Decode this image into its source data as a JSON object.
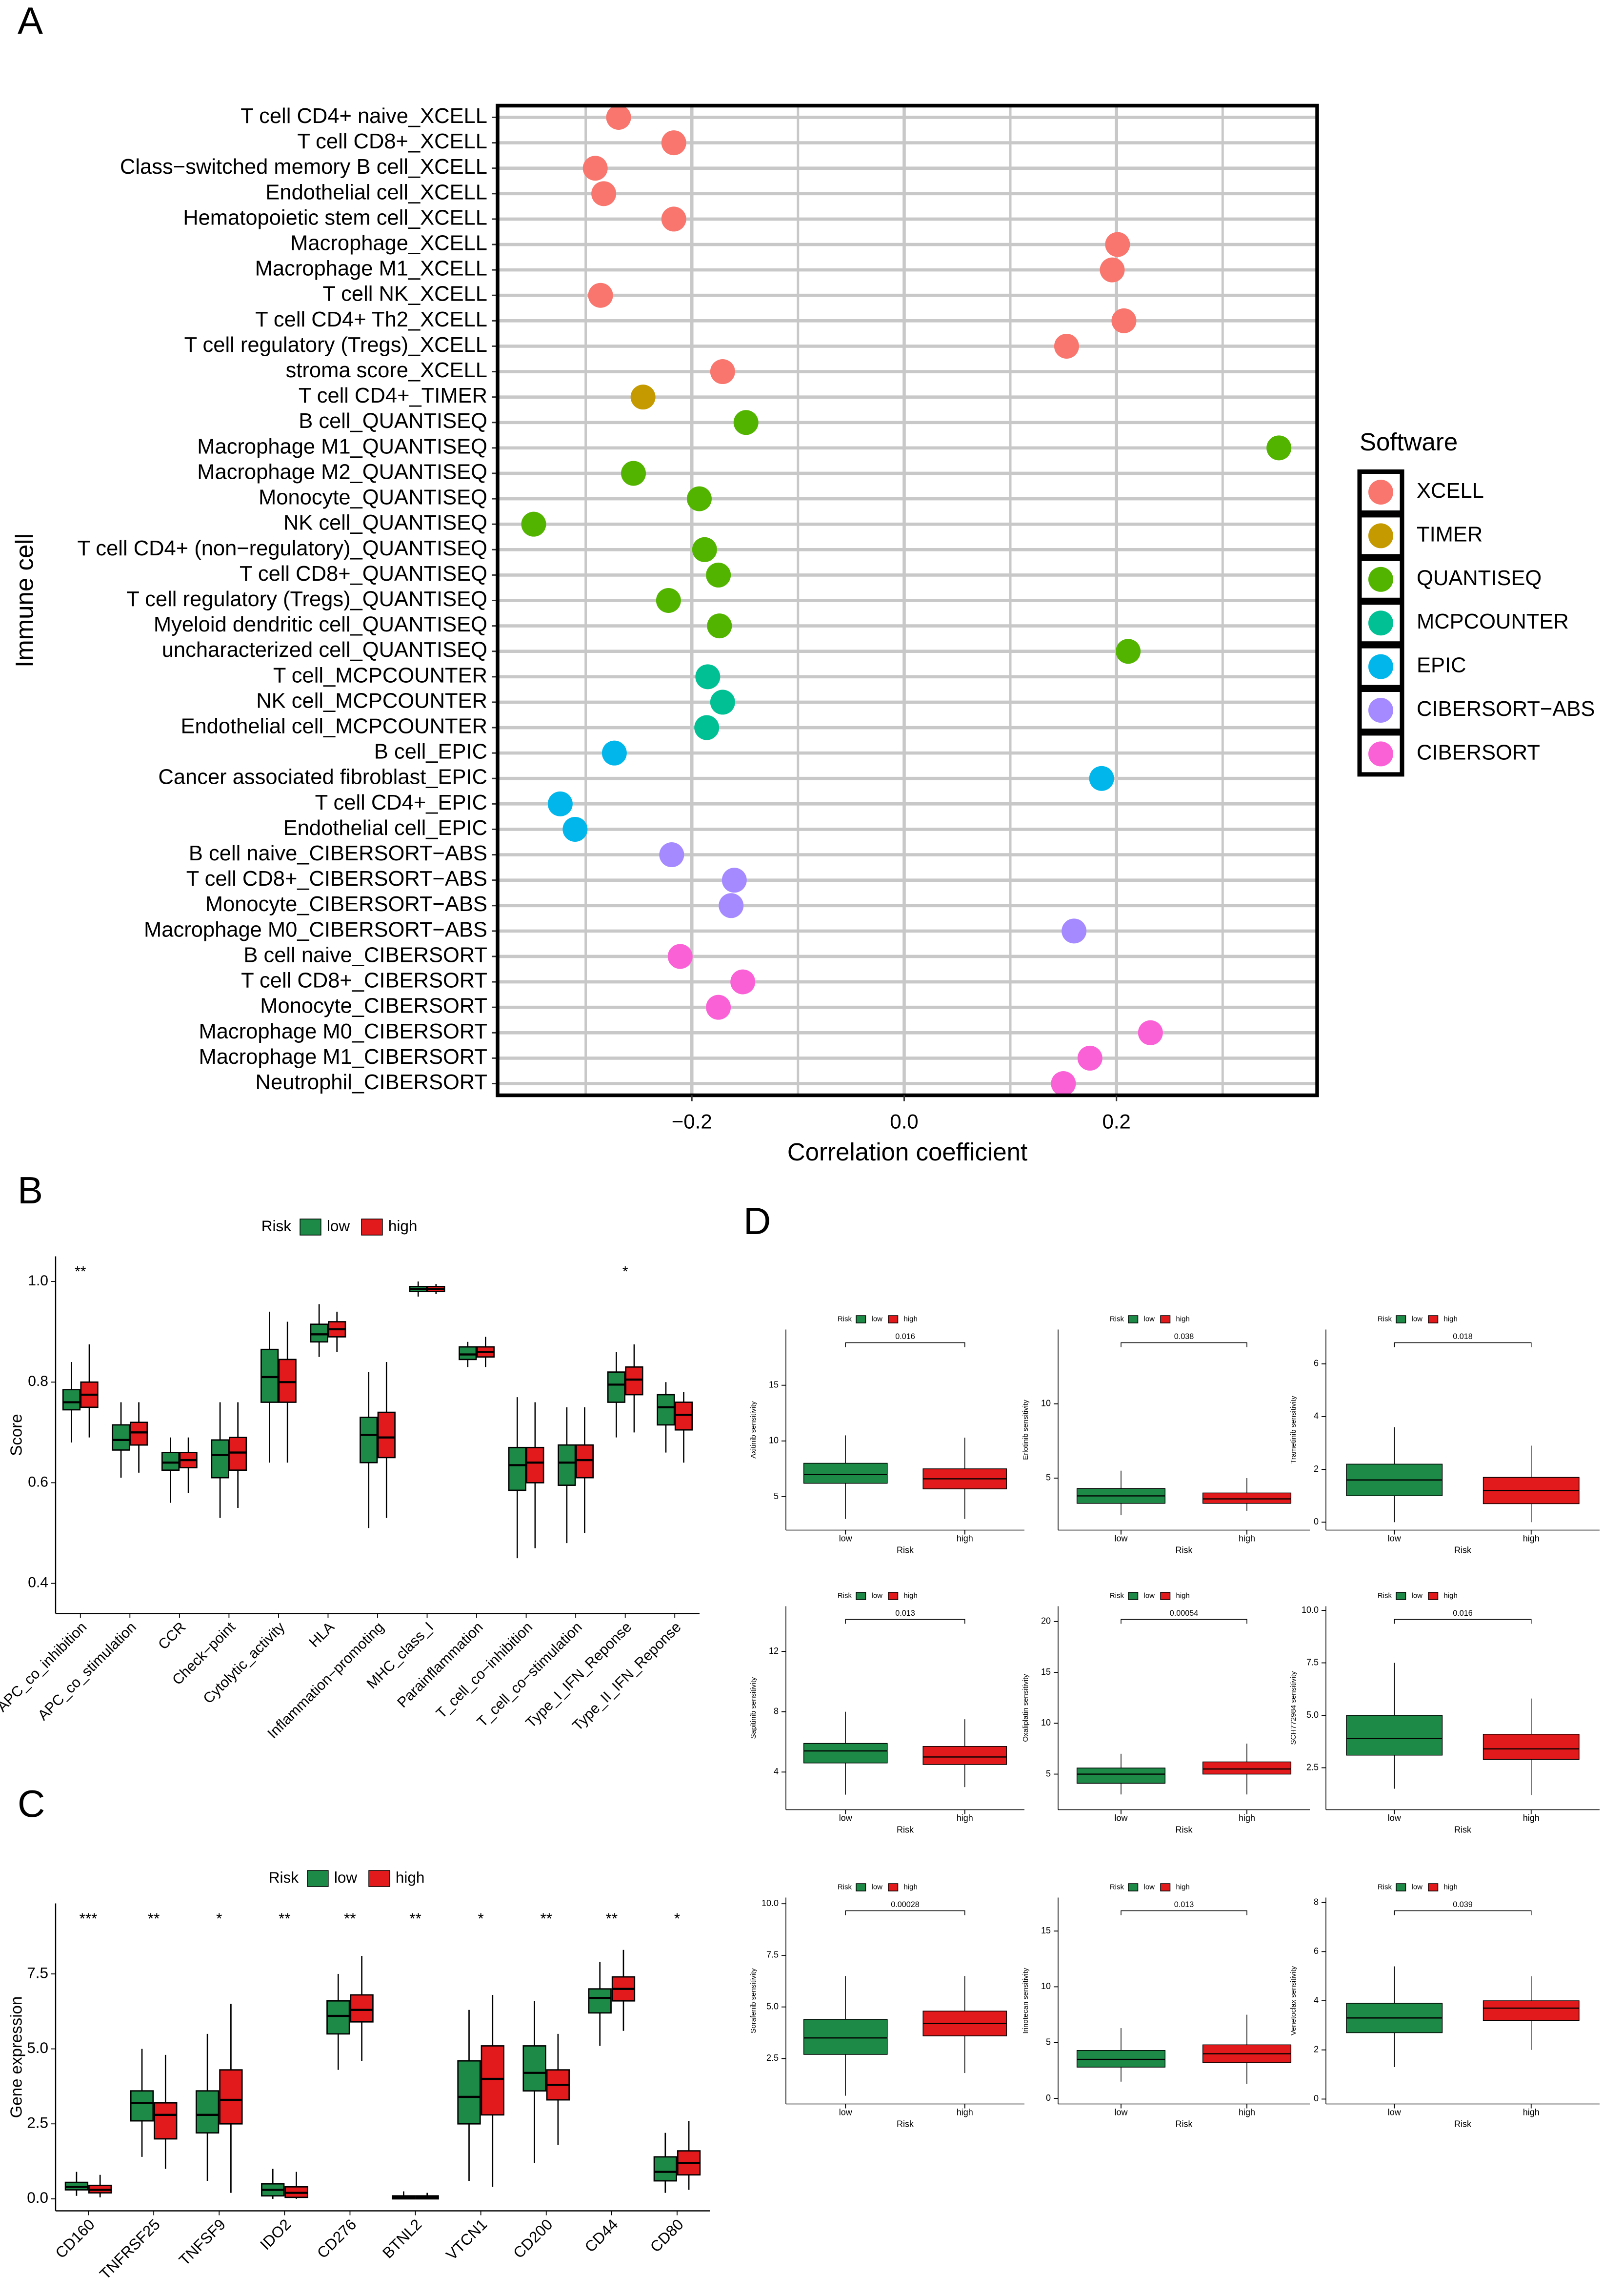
{
  "panel_labels": [
    "A",
    "B",
    "C",
    "D"
  ],
  "chart_data": [
    {
      "type": "dot",
      "xlabel": "Correlation coefficient",
      "ylabel": "Immune cell",
      "legend_title": "Software",
      "xlim": [
        -0.383,
        0.389
      ],
      "xticks": [
        {
          "value": -0.2,
          "label": "−0.2"
        },
        {
          "value": 0,
          "label": "0.0"
        },
        0.2
      ],
      "minor_xticks": [
        -0.3,
        -0.1,
        0.1,
        0.3
      ],
      "grid": true,
      "series": [
        {
          "name": "XCELL",
          "color": "#F8766D",
          "categories": [
            "T cell CD4+ naive_XCELL",
            "T cell CD8+_XCELL",
            "Class−switched memory B cell_XCELL",
            "Endothelial cell_XCELL",
            "Hematopoietic stem cell_XCELL",
            "Macrophage_XCELL",
            "Macrophage M1_XCELL",
            "T cell NK_XCELL",
            "T cell CD4+ Th2_XCELL",
            "T cell regulatory (Tregs)_XCELL",
            "stroma score_XCELL"
          ],
          "values": [
            -0.269,
            -0.217,
            -0.291,
            -0.283,
            -0.217,
            0.201,
            0.196,
            -0.286,
            0.207,
            0.153,
            -0.171
          ]
        },
        {
          "name": "TIMER",
          "color": "#C49A00",
          "categories": [
            "T cell CD4+_TIMER"
          ],
          "values": [
            -0.246
          ]
        },
        {
          "name": "QUANTISEQ",
          "color": "#53B400",
          "categories": [
            "B cell_QUANTISEQ",
            "Macrophage M1_QUANTISEQ",
            "Macrophage M2_QUANTISEQ",
            "Monocyte_QUANTISEQ",
            "NK cell_QUANTISEQ",
            "T cell CD4+ (non−regulatory)_QUANTISEQ",
            "T cell CD8+_QUANTISEQ",
            "T cell regulatory (Tregs)_QUANTISEQ",
            "Myeloid dendritic cell_QUANTISEQ",
            "uncharacterized cell_QUANTISEQ"
          ],
          "values": [
            -0.149,
            0.353,
            -0.255,
            -0.193,
            -0.349,
            -0.188,
            -0.175,
            -0.222,
            -0.174,
            0.211
          ]
        },
        {
          "name": "MCPCOUNTER",
          "color": "#00C094",
          "categories": [
            "T cell_MCPCOUNTER",
            "NK cell_MCPCOUNTER",
            "Endothelial cell_MCPCOUNTER"
          ],
          "values": [
            -0.185,
            -0.171,
            -0.186
          ]
        },
        {
          "name": "EPIC",
          "color": "#00B6EB",
          "categories": [
            "B cell_EPIC",
            "Cancer associated fibroblast_EPIC",
            "T cell CD4+_EPIC",
            "Endothelial cell_EPIC"
          ],
          "values": [
            -0.273,
            0.186,
            -0.324,
            -0.31
          ]
        },
        {
          "name": "CIBERSORT−ABS",
          "color": "#A58AFF",
          "categories": [
            "B cell naive_CIBERSORT−ABS",
            "T cell CD8+_CIBERSORT−ABS",
            "Monocyte_CIBERSORT−ABS",
            "Macrophage M0_CIBERSORT−ABS"
          ],
          "values": [
            -0.219,
            -0.16,
            -0.163,
            0.16
          ]
        },
        {
          "name": "CIBERSORT",
          "color": "#FB61D7",
          "categories": [
            "B cell naive_CIBERSORT",
            "T cell CD8+_CIBERSORT",
            "Monocyte_CIBERSORT",
            "Macrophage M0_CIBERSORT",
            "Macrophage M1_CIBERSORT",
            "Neutrophil_CIBERSORT"
          ],
          "values": [
            -0.211,
            -0.152,
            -0.175,
            0.232,
            0.175,
            0.15
          ]
        }
      ]
    },
    {
      "type": "box",
      "ylabel": "Score",
      "legend_title": "Risk",
      "categories": [
        "APC_co_inhibition",
        "APC_co_stimulation",
        "CCR",
        "Check−point",
        "Cytolytic_activity",
        "HLA",
        "Inflammation−promoting",
        "MHC_class_I",
        "Parainflammation",
        "T_cell_co−inhibition",
        "T_cell_co−stimulation",
        "Type_I_IFN_Reponse",
        "Type_II_IFN_Reponse"
      ],
      "annotations": [
        "**",
        null,
        null,
        null,
        null,
        null,
        null,
        null,
        null,
        null,
        null,
        "*",
        null
      ],
      "ylim": [
        0.34,
        1.05
      ],
      "yticks": [
        0.4,
        0.6,
        0.8,
        {
          "value": 1.0,
          "label": "1.0"
        }
      ],
      "series": [
        {
          "name": "low",
          "color": "#1E8A48",
          "stats": [
            [
              0.68,
              0.745,
              0.76,
              0.785,
              0.84
            ],
            [
              0.61,
              0.665,
              0.685,
              0.715,
              0.76
            ],
            [
              0.56,
              0.625,
              0.64,
              0.66,
              0.69
            ],
            [
              0.53,
              0.61,
              0.655,
              0.685,
              0.76
            ],
            [
              0.64,
              0.76,
              0.81,
              0.865,
              0.94
            ],
            [
              0.85,
              0.88,
              0.895,
              0.915,
              0.955
            ],
            [
              0.51,
              0.64,
              0.695,
              0.73,
              0.82
            ],
            [
              0.97,
              0.98,
              0.985,
              0.99,
              1.0
            ],
            [
              0.83,
              0.845,
              0.855,
              0.87,
              0.88
            ],
            [
              0.45,
              0.585,
              0.635,
              0.67,
              0.77
            ],
            [
              0.48,
              0.595,
              0.64,
              0.675,
              0.75
            ],
            [
              0.69,
              0.76,
              0.795,
              0.82,
              0.86
            ],
            [
              0.66,
              0.715,
              0.75,
              0.775,
              0.8
            ]
          ]
        },
        {
          "name": "high",
          "color": "#E31A1C",
          "stats": [
            [
              0.69,
              0.75,
              0.775,
              0.8,
              0.875
            ],
            [
              0.62,
              0.675,
              0.7,
              0.72,
              0.76
            ],
            [
              0.58,
              0.63,
              0.645,
              0.66,
              0.69
            ],
            [
              0.55,
              0.625,
              0.66,
              0.69,
              0.76
            ],
            [
              0.64,
              0.76,
              0.8,
              0.845,
              0.92
            ],
            [
              0.86,
              0.89,
              0.905,
              0.92,
              0.94
            ],
            [
              0.53,
              0.65,
              0.69,
              0.74,
              0.84
            ],
            [
              0.975,
              0.98,
              0.985,
              0.99,
              0.995
            ],
            [
              0.83,
              0.85,
              0.86,
              0.87,
              0.89
            ],
            [
              0.47,
              0.6,
              0.64,
              0.67,
              0.76
            ],
            [
              0.5,
              0.61,
              0.645,
              0.675,
              0.75
            ],
            [
              0.7,
              0.775,
              0.805,
              0.83,
              0.875
            ],
            [
              0.64,
              0.705,
              0.735,
              0.76,
              0.78
            ]
          ]
        }
      ]
    },
    {
      "type": "box",
      "ylabel": "Gene expression",
      "legend_title": "Risk",
      "categories": [
        "CD160",
        "TNFRSF25",
        "TNFSF9",
        "IDO2",
        "CD276",
        "BTNL2",
        "VTCN1",
        "CD200",
        "CD44",
        "CD80"
      ],
      "annotations": [
        "***",
        "**",
        "*",
        "**",
        "**",
        "**",
        "*",
        "**",
        "**",
        "*"
      ],
      "ylim": [
        -0.4,
        9.85
      ],
      "yticks": [
        {
          "value": 0,
          "label": "0.0"
        },
        2.5,
        {
          "value": 5,
          "label": "5.0"
        },
        7.5
      ],
      "series": [
        {
          "name": "low",
          "color": "#1E8A48",
          "stats": [
            [
              0.1,
              0.3,
              0.4,
              0.55,
              0.9
            ],
            [
              1.4,
              2.6,
              3.2,
              3.6,
              5.0
            ],
            [
              0.6,
              2.2,
              2.8,
              3.6,
              5.5
            ],
            [
              0,
              0.1,
              0.3,
              0.5,
              1.0
            ],
            [
              4.3,
              5.5,
              6.1,
              6.6,
              7.5
            ],
            [
              0,
              0,
              0.05,
              0.1,
              0.25
            ],
            [
              0.6,
              2.5,
              3.4,
              4.6,
              6.3
            ],
            [
              1.2,
              3.6,
              4.2,
              5.1,
              6.6
            ],
            [
              5.1,
              6.2,
              6.7,
              7.0,
              7.9
            ],
            [
              0.2,
              0.6,
              0.9,
              1.4,
              2.2
            ]
          ]
        },
        {
          "name": "high",
          "color": "#E31A1C",
          "stats": [
            [
              0.05,
              0.2,
              0.3,
              0.45,
              0.8
            ],
            [
              1.0,
              2.0,
              2.8,
              3.2,
              4.8
            ],
            [
              0.2,
              2.5,
              3.3,
              4.3,
              6.5
            ],
            [
              0,
              0.05,
              0.2,
              0.4,
              0.9
            ],
            [
              4.6,
              5.9,
              6.3,
              6.8,
              8.1
            ],
            [
              0,
              0,
              0.05,
              0.1,
              0.2
            ],
            [
              0.4,
              2.8,
              4.0,
              5.1,
              6.8
            ],
            [
              1.8,
              3.3,
              3.8,
              4.3,
              5.5
            ],
            [
              5.6,
              6.6,
              7.0,
              7.4,
              8.3
            ],
            [
              0.3,
              0.8,
              1.2,
              1.6,
              2.6
            ]
          ]
        }
      ]
    },
    {
      "type": "box",
      "ylabel": "Axitinib sensitivity",
      "xlabel": "Risk",
      "legend_title": "Risk",
      "categories": [
        "low",
        "high"
      ],
      "pvalue": 0.016,
      "ylim": [
        2,
        20
      ],
      "yticks": [
        5,
        10,
        15
      ],
      "series": [
        {
          "name": "low",
          "color": "#1E8A48",
          "stats": [
            [
              3,
              6.2,
              7,
              8,
              10.5
            ]
          ]
        },
        {
          "name": "high",
          "color": "#E31A1C",
          "stats": [
            [
              3,
              5.7,
              6.6,
              7.5,
              10.3
            ]
          ]
        }
      ]
    },
    {
      "type": "box",
      "ylabel": "Erlotinib sensitivity",
      "xlabel": "Risk",
      "legend_title": "Risk",
      "categories": [
        "low",
        "high"
      ],
      "pvalue": 0.038,
      "ylim": [
        1.5,
        15
      ],
      "yticks": [
        5,
        10
      ],
      "series": [
        {
          "name": "low",
          "color": "#1E8A48",
          "stats": [
            [
              2.5,
              3.3,
              3.8,
              4.3,
              5.5
            ]
          ]
        },
        {
          "name": "high",
          "color": "#E31A1C",
          "stats": [
            [
              2.8,
              3.3,
              3.6,
              4.0,
              5.0
            ]
          ]
        }
      ]
    },
    {
      "type": "box",
      "ylabel": "Trametinib sensitivity",
      "xlabel": "Risk",
      "legend_title": "Risk",
      "categories": [
        "low",
        "high"
      ],
      "pvalue": 0.018,
      "ylim": [
        -0.3,
        7.3
      ],
      "yticks": [
        0,
        2,
        4,
        6
      ],
      "series": [
        {
          "name": "low",
          "color": "#1E8A48",
          "stats": [
            [
              0,
              1,
              1.6,
              2.2,
              3.6
            ]
          ]
        },
        {
          "name": "high",
          "color": "#E31A1C",
          "stats": [
            [
              0,
              0.7,
              1.2,
              1.7,
              2.9
            ]
          ]
        }
      ]
    },
    {
      "type": "box",
      "ylabel": "Sapitinib sensitivity",
      "xlabel": "Risk",
      "legend_title": "Risk",
      "categories": [
        "low",
        "high"
      ],
      "pvalue": 0.013,
      "ylim": [
        1.5,
        15
      ],
      "yticks": [
        4,
        8,
        12
      ],
      "series": [
        {
          "name": "low",
          "color": "#1E8A48",
          "stats": [
            [
              2.5,
              4.6,
              5.4,
              5.9,
              8
            ]
          ]
        },
        {
          "name": "high",
          "color": "#E31A1C",
          "stats": [
            [
              3,
              4.5,
              5,
              5.7,
              7.5
            ]
          ]
        }
      ]
    },
    {
      "type": "box",
      "ylabel": "Oxaliplatin sensitivity",
      "xlabel": "Risk",
      "legend_title": "Risk",
      "categories": [
        "low",
        "high"
      ],
      "pvalue": 0.00054,
      "ylim": [
        1.5,
        21.5
      ],
      "yticks": [
        5,
        10,
        15,
        20
      ],
      "series": [
        {
          "name": "low",
          "color": "#1E8A48",
          "stats": [
            [
              3,
              4.1,
              5,
              5.6,
              7
            ]
          ]
        },
        {
          "name": "high",
          "color": "#E31A1C",
          "stats": [
            [
              3,
              5,
              5.5,
              6.2,
              8
            ]
          ]
        }
      ]
    },
    {
      "type": "box",
      "ylabel": "SCH772984 sensitivity",
      "xlabel": "Risk",
      "legend_title": "Risk",
      "categories": [
        "low",
        "high"
      ],
      "pvalue": 0.016,
      "ylim": [
        0.5,
        10.2
      ],
      "yticks": [
        2.5,
        {
          "value": 5,
          "label": "5.0"
        },
        7.5,
        {
          "value": 10,
          "label": "10.0"
        }
      ],
      "series": [
        {
          "name": "low",
          "color": "#1E8A48",
          "stats": [
            [
              1.5,
              3.1,
              3.9,
              5.0,
              7.5
            ]
          ]
        },
        {
          "name": "high",
          "color": "#E31A1C",
          "stats": [
            [
              1.2,
              2.9,
              3.4,
              4.1,
              5.8
            ]
          ]
        }
      ]
    },
    {
      "type": "box",
      "ylabel": "Sorafenib sensitivity",
      "xlabel": "Risk",
      "legend_title": "Risk",
      "categories": [
        "low",
        "high"
      ],
      "pvalue": 0.00028,
      "ylim": [
        0.3,
        10.3
      ],
      "yticks": [
        2.5,
        {
          "value": 5,
          "label": "5.0"
        },
        7.5,
        {
          "value": 10,
          "label": "10.0"
        }
      ],
      "series": [
        {
          "name": "low",
          "color": "#1E8A48",
          "stats": [
            [
              0.7,
              2.7,
              3.5,
              4.4,
              6.5
            ]
          ]
        },
        {
          "name": "high",
          "color": "#E31A1C",
          "stats": [
            [
              1.8,
              3.6,
              4.2,
              4.8,
              6.5
            ]
          ]
        }
      ]
    },
    {
      "type": "box",
      "ylabel": "Irinotecan sensitivity",
      "xlabel": "Risk",
      "legend_title": "Risk",
      "categories": [
        "low",
        "high"
      ],
      "pvalue": 0.013,
      "ylim": [
        -0.5,
        18
      ],
      "yticks": [
        0,
        5,
        10,
        15
      ],
      "series": [
        {
          "name": "low",
          "color": "#1E8A48",
          "stats": [
            [
              1.5,
              2.8,
              3.5,
              4.3,
              6.3
            ]
          ]
        },
        {
          "name": "high",
          "color": "#E31A1C",
          "stats": [
            [
              1.3,
              3.2,
              4,
              4.8,
              7.5
            ]
          ]
        }
      ]
    },
    {
      "type": "box",
      "ylabel": "Venetoclax sensitivity",
      "xlabel": "Risk",
      "legend_title": "Risk",
      "categories": [
        "low",
        "high"
      ],
      "pvalue": 0.039,
      "ylim": [
        -0.2,
        8.2
      ],
      "yticks": [
        0,
        2,
        4,
        6,
        8
      ],
      "series": [
        {
          "name": "low",
          "color": "#1E8A48",
          "stats": [
            [
              1.3,
              2.7,
              3.3,
              3.9,
              5.4
            ]
          ]
        },
        {
          "name": "high",
          "color": "#E31A1C",
          "stats": [
            [
              2.0,
              3.2,
              3.7,
              4.0,
              5.0
            ]
          ]
        }
      ]
    }
  ]
}
